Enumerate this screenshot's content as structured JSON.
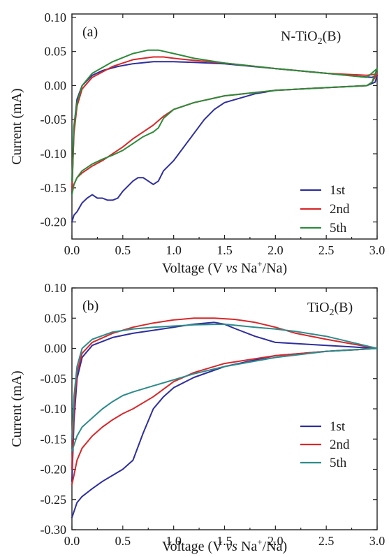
{
  "chart_data": [
    {
      "type": "line",
      "panel_label": "(a)",
      "sample_label": "N-TiO",
      "sample_sub": "2",
      "sample_suffix": "(B)",
      "ylabel": "Current (mA)",
      "xlabel_pre": "Voltage  (V ",
      "xlabel_vs": "vs",
      "xlabel_na": " Na",
      "xlabel_sup": "+",
      "xlabel_post": "/Na)",
      "xlim": [
        0.0,
        3.0
      ],
      "ylim": [
        -0.225,
        0.105
      ],
      "xticks": [
        "0.0",
        "0.5",
        "1.0",
        "1.5",
        "2.0",
        "2.5",
        "3.0"
      ],
      "xtick_values": [
        0.0,
        0.5,
        1.0,
        1.5,
        2.0,
        2.5,
        3.0
      ],
      "yticks": [
        "0.10",
        "0.05",
        "0.00",
        "-0.05",
        "-0.10",
        "-0.15",
        "-0.20"
      ],
      "ytick_values": [
        0.1,
        0.05,
        0.0,
        -0.05,
        -0.1,
        -0.15,
        -0.2
      ],
      "legend_position": "right-middle",
      "grid": false,
      "series": [
        {
          "name": "1st",
          "color": "#2e2e9e",
          "x": [
            0.0,
            0.02,
            0.05,
            0.1,
            0.2,
            0.3,
            0.45,
            0.6,
            0.8,
            1.0,
            1.2,
            1.5,
            2.0,
            2.5,
            2.85,
            2.95,
            3.0,
            2.98,
            2.9,
            2.5,
            2.0,
            1.8,
            1.5,
            1.4,
            1.3,
            1.2,
            1.1,
            1.0,
            0.9,
            0.85,
            0.8,
            0.75,
            0.7,
            0.65,
            0.6,
            0.5,
            0.45,
            0.4,
            0.35,
            0.3,
            0.25,
            0.2,
            0.15,
            0.1,
            0.05,
            0.02,
            0.0
          ],
          "y": [
            -0.16,
            -0.06,
            -0.02,
            0.0,
            0.015,
            0.022,
            0.028,
            0.032,
            0.035,
            0.035,
            0.034,
            0.032,
            0.025,
            0.018,
            0.013,
            0.012,
            0.015,
            0.005,
            0.0,
            -0.003,
            -0.007,
            -0.012,
            -0.025,
            -0.035,
            -0.05,
            -0.07,
            -0.09,
            -0.11,
            -0.125,
            -0.14,
            -0.145,
            -0.14,
            -0.135,
            -0.135,
            -0.14,
            -0.155,
            -0.165,
            -0.168,
            -0.168,
            -0.165,
            -0.165,
            -0.16,
            -0.165,
            -0.172,
            -0.185,
            -0.19,
            -0.2
          ]
        },
        {
          "name": "2nd",
          "color": "#d8282b",
          "x": [
            0.0,
            0.02,
            0.05,
            0.1,
            0.2,
            0.4,
            0.6,
            0.8,
            0.9,
            1.0,
            1.2,
            1.5,
            2.0,
            2.5,
            2.9,
            3.0,
            2.95,
            2.9,
            2.5,
            2.0,
            1.5,
            1.2,
            1.0,
            0.9,
            0.8,
            0.7,
            0.6,
            0.5,
            0.4,
            0.3,
            0.2,
            0.1,
            0.05,
            0.02,
            0.0
          ],
          "y": [
            -0.15,
            -0.07,
            -0.03,
            -0.005,
            0.012,
            0.028,
            0.038,
            0.042,
            0.042,
            0.04,
            0.037,
            0.033,
            0.025,
            0.018,
            0.015,
            0.017,
            0.005,
            0.0,
            -0.003,
            -0.007,
            -0.015,
            -0.025,
            -0.035,
            -0.045,
            -0.058,
            -0.068,
            -0.078,
            -0.09,
            -0.1,
            -0.11,
            -0.118,
            -0.128,
            -0.135,
            -0.145,
            -0.155
          ]
        },
        {
          "name": "5th",
          "color": "#2e8a3a",
          "x": [
            0.0,
            0.02,
            0.05,
            0.1,
            0.2,
            0.4,
            0.6,
            0.75,
            0.85,
            1.0,
            1.2,
            1.5,
            2.0,
            2.5,
            2.9,
            3.0,
            2.95,
            2.9,
            2.5,
            2.0,
            1.5,
            1.2,
            1.0,
            0.9,
            0.85,
            0.8,
            0.7,
            0.6,
            0.5,
            0.4,
            0.3,
            0.2,
            0.1,
            0.05,
            0.02,
            0.0
          ],
          "y": [
            -0.14,
            -0.06,
            -0.025,
            0.0,
            0.018,
            0.035,
            0.047,
            0.052,
            0.052,
            0.047,
            0.04,
            0.033,
            0.025,
            0.018,
            0.012,
            0.025,
            0.005,
            0.0,
            -0.003,
            -0.007,
            -0.015,
            -0.025,
            -0.035,
            -0.048,
            -0.062,
            -0.068,
            -0.075,
            -0.085,
            -0.095,
            -0.102,
            -0.108,
            -0.115,
            -0.125,
            -0.135,
            -0.145,
            -0.16
          ]
        }
      ]
    },
    {
      "type": "line",
      "panel_label": "(b)",
      "sample_label": "TiO",
      "sample_sub": "2",
      "sample_suffix": "(B)",
      "ylabel": "Current (mA)",
      "xlabel_pre": "Voltage  (V ",
      "xlabel_vs": "vs",
      "xlabel_na": " Na",
      "xlabel_sup": "+",
      "xlabel_post": "/Na)",
      "xlim": [
        0.0,
        3.0
      ],
      "ylim": [
        -0.3,
        0.1
      ],
      "xticks": [
        "0.0",
        "0.5",
        "1.0",
        "1.5",
        "2.0",
        "2.5",
        "3.0"
      ],
      "xtick_values": [
        0.0,
        0.5,
        1.0,
        1.5,
        2.0,
        2.5,
        3.0
      ],
      "yticks": [
        "0.10",
        "0.05",
        "0.00",
        "-0.05",
        "-0.10",
        "-0.15",
        "-0.20",
        "-0.25",
        "-0.30"
      ],
      "ytick_values": [
        0.1,
        0.05,
        0.0,
        -0.05,
        -0.1,
        -0.15,
        -0.2,
        -0.25,
        -0.3
      ],
      "legend_position": "right-lower",
      "grid": false,
      "series": [
        {
          "name": "1st",
          "color": "#2e2e9e",
          "x": [
            0.0,
            0.02,
            0.05,
            0.1,
            0.2,
            0.4,
            0.6,
            0.8,
            1.0,
            1.2,
            1.4,
            1.5,
            1.6,
            1.8,
            2.0,
            2.5,
            3.0,
            2.8,
            2.5,
            2.0,
            1.5,
            1.2,
            1.0,
            0.9,
            0.8,
            0.7,
            0.6,
            0.5,
            0.4,
            0.3,
            0.2,
            0.1,
            0.05,
            0.02,
            0.0
          ],
          "y": [
            -0.22,
            -0.12,
            -0.05,
            -0.015,
            0.005,
            0.018,
            0.025,
            0.03,
            0.035,
            0.04,
            0.043,
            0.04,
            0.033,
            0.02,
            0.01,
            0.005,
            0.0,
            -0.002,
            -0.005,
            -0.012,
            -0.03,
            -0.048,
            -0.065,
            -0.08,
            -0.1,
            -0.14,
            -0.185,
            -0.2,
            -0.21,
            -0.22,
            -0.232,
            -0.245,
            -0.255,
            -0.27,
            -0.28
          ]
        },
        {
          "name": "2nd",
          "color": "#d8282b",
          "x": [
            0.0,
            0.02,
            0.05,
            0.1,
            0.2,
            0.4,
            0.6,
            0.8,
            1.0,
            1.2,
            1.4,
            1.6,
            1.8,
            2.0,
            2.2,
            2.5,
            3.0,
            2.8,
            2.5,
            2.0,
            1.5,
            1.2,
            1.0,
            0.8,
            0.6,
            0.5,
            0.4,
            0.3,
            0.2,
            0.1,
            0.05,
            0.02,
            0.0
          ],
          "y": [
            -0.2,
            -0.1,
            -0.04,
            -0.008,
            0.01,
            0.025,
            0.035,
            0.042,
            0.047,
            0.05,
            0.05,
            0.048,
            0.043,
            0.035,
            0.025,
            0.015,
            0.0,
            -0.002,
            -0.005,
            -0.012,
            -0.025,
            -0.04,
            -0.055,
            -0.08,
            -0.1,
            -0.108,
            -0.118,
            -0.13,
            -0.145,
            -0.165,
            -0.185,
            -0.21,
            -0.225
          ]
        },
        {
          "name": "5th",
          "color": "#2e8b8b",
          "x": [
            0.0,
            0.02,
            0.05,
            0.1,
            0.2,
            0.4,
            0.6,
            0.8,
            1.0,
            1.2,
            1.5,
            1.8,
            2.0,
            2.2,
            2.5,
            3.0,
            2.8,
            2.5,
            2.0,
            1.5,
            1.2,
            1.0,
            0.8,
            0.6,
            0.5,
            0.4,
            0.3,
            0.2,
            0.1,
            0.05,
            0.02,
            0.0
          ],
          "y": [
            -0.15,
            -0.08,
            -0.03,
            0.0,
            0.015,
            0.027,
            0.032,
            0.035,
            0.037,
            0.039,
            0.04,
            0.035,
            0.032,
            0.028,
            0.02,
            0.0,
            -0.002,
            -0.005,
            -0.015,
            -0.03,
            -0.042,
            -0.052,
            -0.062,
            -0.072,
            -0.078,
            -0.088,
            -0.1,
            -0.115,
            -0.13,
            -0.145,
            -0.16,
            -0.17
          ]
        }
      ]
    }
  ]
}
